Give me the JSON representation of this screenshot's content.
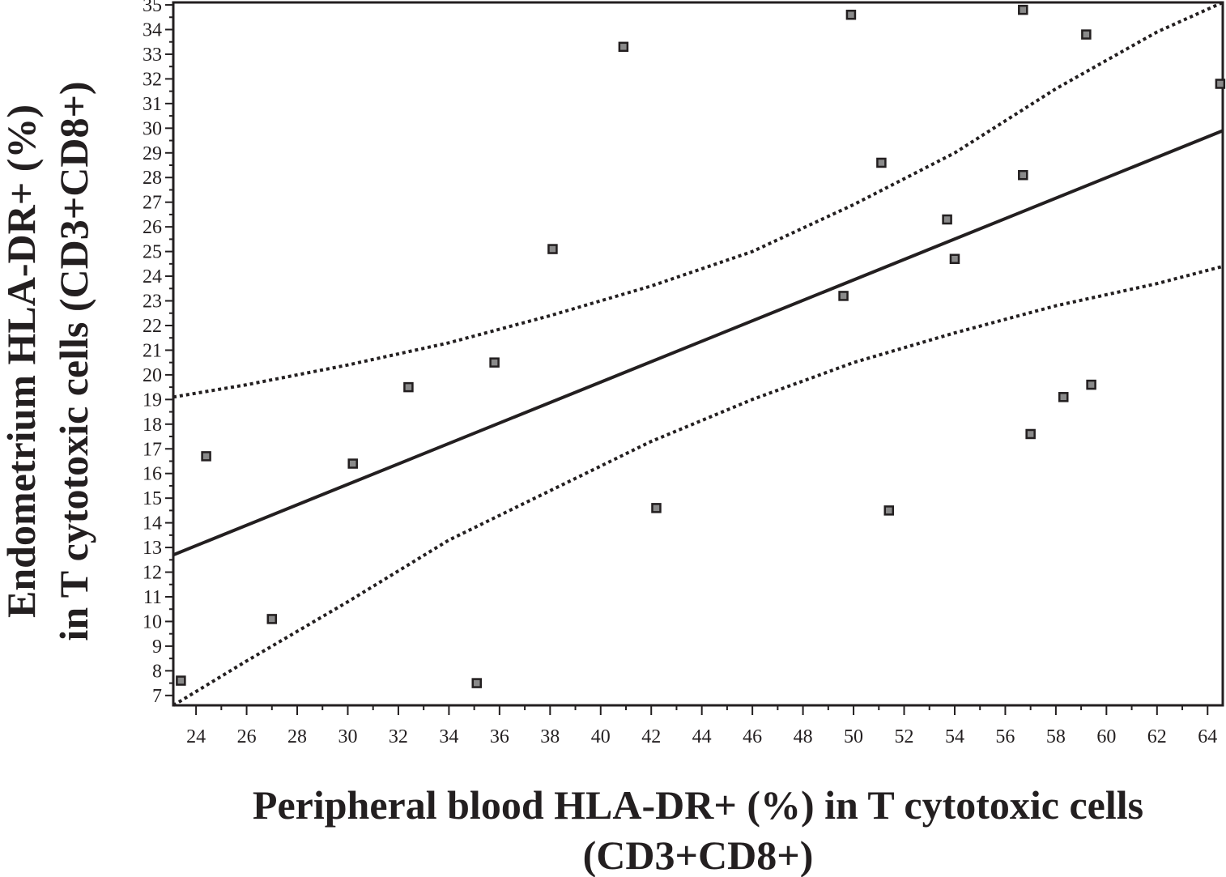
{
  "chart_data": {
    "type": "scatter",
    "xlabel_line1": "Peripheral blood HLA-DR+ (%) in T cytotoxic cells",
    "xlabel_line2": "(CD3+CD8+)",
    "ylabel_line1": "Endometrium HLA-DR+ (%)",
    "ylabel_line2": "in T cytotoxic cells (CD3+CD8+)",
    "xlim": [
      23.1,
      64.6
    ],
    "ylim": [
      6.6,
      35.1
    ],
    "x_ticks": [
      24,
      26,
      28,
      30,
      32,
      34,
      36,
      38,
      40,
      42,
      44,
      46,
      48,
      50,
      52,
      54,
      56,
      58,
      60,
      62,
      64
    ],
    "y_ticks": [
      7,
      8,
      9,
      10,
      11,
      12,
      13,
      14,
      15,
      16,
      17,
      18,
      19,
      20,
      21,
      22,
      23,
      24,
      25,
      26,
      27,
      28,
      29,
      30,
      31,
      32,
      33,
      34,
      35
    ],
    "grid": false,
    "points": [
      {
        "x": 23.4,
        "y": 7.6
      },
      {
        "x": 24.4,
        "y": 16.7
      },
      {
        "x": 27.0,
        "y": 10.1
      },
      {
        "x": 30.2,
        "y": 16.4
      },
      {
        "x": 32.4,
        "y": 19.5
      },
      {
        "x": 35.1,
        "y": 7.5
      },
      {
        "x": 35.8,
        "y": 20.5
      },
      {
        "x": 38.1,
        "y": 25.1
      },
      {
        "x": 40.9,
        "y": 33.3
      },
      {
        "x": 42.2,
        "y": 14.6
      },
      {
        "x": 49.6,
        "y": 23.2
      },
      {
        "x": 49.9,
        "y": 34.6
      },
      {
        "x": 51.1,
        "y": 28.6
      },
      {
        "x": 51.4,
        "y": 14.5
      },
      {
        "x": 53.7,
        "y": 26.3
      },
      {
        "x": 54.0,
        "y": 24.7
      },
      {
        "x": 56.7,
        "y": 28.1
      },
      {
        "x": 56.7,
        "y": 34.8
      },
      {
        "x": 57.0,
        "y": 17.6
      },
      {
        "x": 58.3,
        "y": 19.1
      },
      {
        "x": 59.2,
        "y": 33.8
      },
      {
        "x": 59.4,
        "y": 19.6
      },
      {
        "x": 64.5,
        "y": 31.8
      }
    ],
    "regression_line": [
      {
        "x": 23.1,
        "y": 12.7
      },
      {
        "x": 64.6,
        "y": 29.9
      }
    ],
    "upper_ci": [
      {
        "x": 23.1,
        "y": 19.1
      },
      {
        "x": 26,
        "y": 19.6
      },
      {
        "x": 30,
        "y": 20.4
      },
      {
        "x": 34,
        "y": 21.3
      },
      {
        "x": 38,
        "y": 22.4
      },
      {
        "x": 42,
        "y": 23.6
      },
      {
        "x": 46,
        "y": 25.0
      },
      {
        "x": 50,
        "y": 26.9
      },
      {
        "x": 54,
        "y": 29.0
      },
      {
        "x": 58,
        "y": 31.6
      },
      {
        "x": 62,
        "y": 33.9
      },
      {
        "x": 64.6,
        "y": 35.1
      }
    ],
    "lower_ci": [
      {
        "x": 23.1,
        "y": 6.6
      },
      {
        "x": 26,
        "y": 8.4
      },
      {
        "x": 30,
        "y": 10.8
      },
      {
        "x": 34,
        "y": 13.3
      },
      {
        "x": 38,
        "y": 15.3
      },
      {
        "x": 42,
        "y": 17.3
      },
      {
        "x": 46,
        "y": 19.0
      },
      {
        "x": 50,
        "y": 20.5
      },
      {
        "x": 54,
        "y": 21.7
      },
      {
        "x": 58,
        "y": 22.8
      },
      {
        "x": 62,
        "y": 23.7
      },
      {
        "x": 64.6,
        "y": 24.4
      }
    ]
  }
}
